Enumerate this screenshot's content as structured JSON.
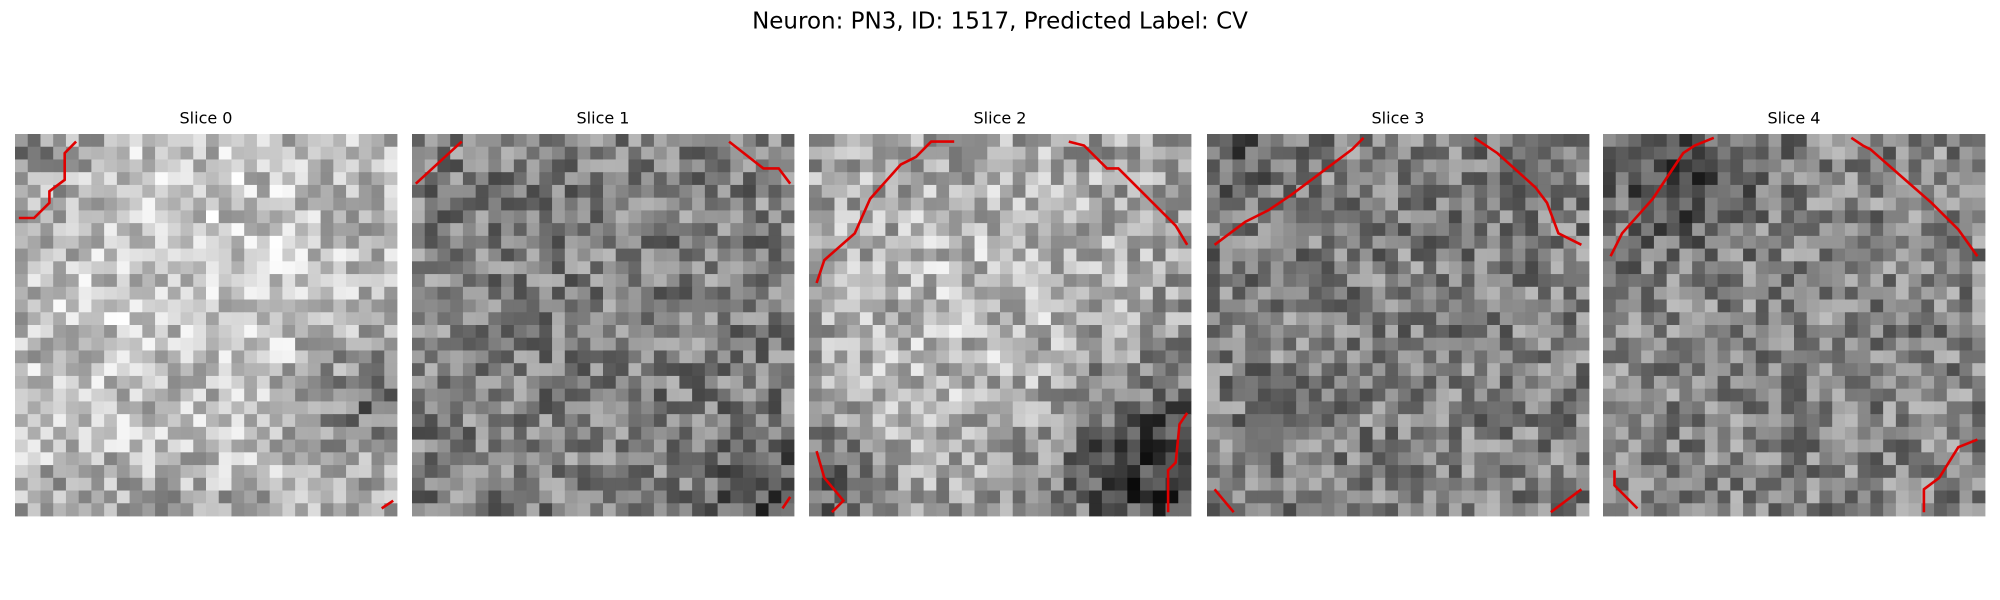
{
  "title": "Neuron: PN3, ID: 1517, Predicted Label: CV",
  "panels": [
    {
      "title": "Slice 0"
    },
    {
      "title": "Slice 1"
    },
    {
      "title": "Slice 2"
    },
    {
      "title": "Slice 3"
    },
    {
      "title": "Slice 4"
    }
  ]
}
